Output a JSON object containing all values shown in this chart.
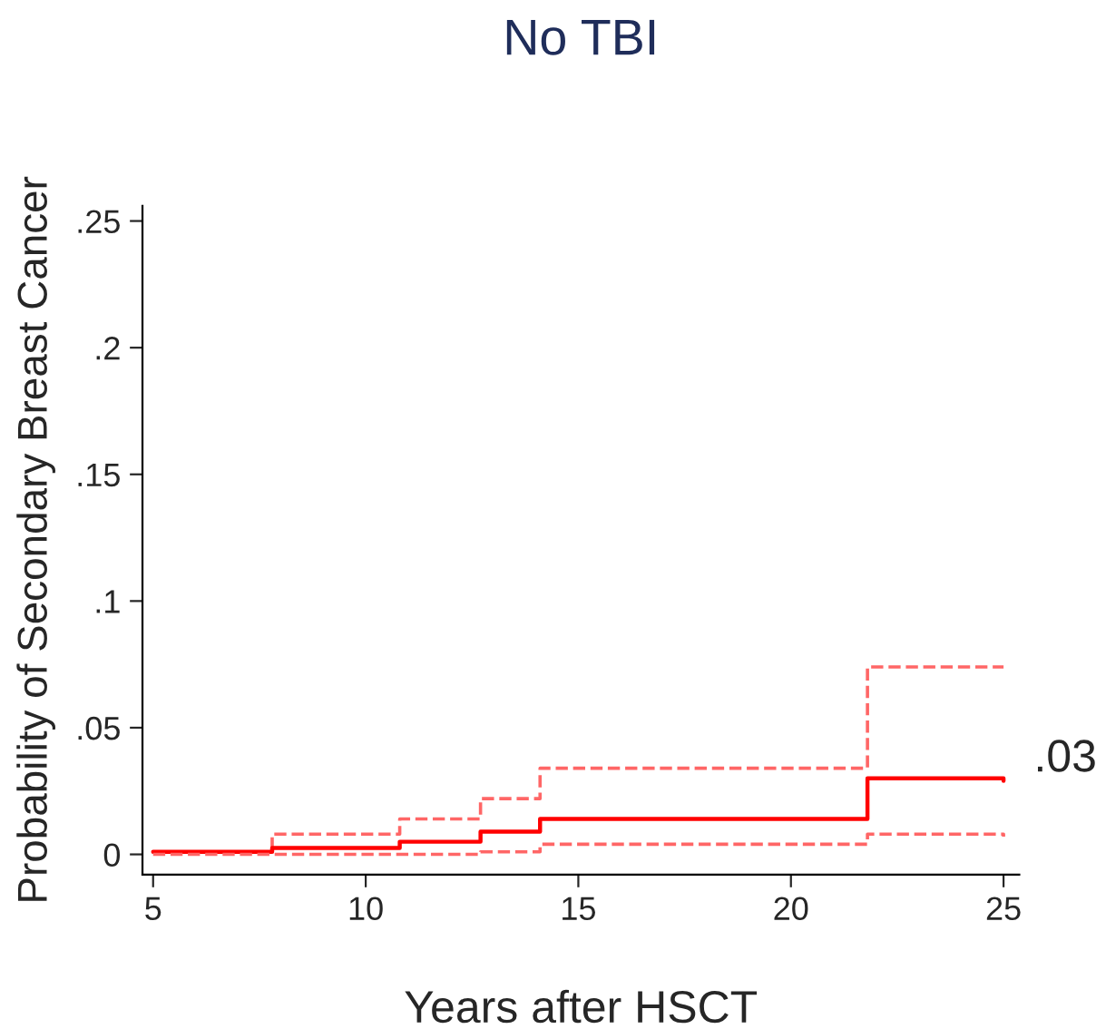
{
  "chart_data": {
    "type": "step",
    "title": "No TBI",
    "xlabel": "Years after HSCT",
    "ylabel": "Probability of Secondary Breast Cancer",
    "xlim": [
      4.75,
      25.37
    ],
    "xticks": [
      5,
      10,
      15,
      20,
      25
    ],
    "ylim": [
      -0.008,
      0.256
    ],
    "yticks": [
      {
        "value": 0,
        "label": "0"
      },
      {
        "value": 0.05,
        "label": ".05"
      },
      {
        "value": 0.1,
        "label": ".1"
      },
      {
        "value": 0.15,
        "label": ".15"
      },
      {
        "value": 0.2,
        "label": ".2"
      },
      {
        "value": 0.25,
        "label": ".25"
      }
    ],
    "grid": false,
    "legend": false,
    "series": [
      {
        "color": "#ff6666",
        "line_style": "dashed",
        "x": [
          5,
          7.8,
          10.8,
          12.7,
          14.1,
          21.8,
          25
        ],
        "values": [
          0.001,
          0.008,
          0.014,
          0.022,
          0.034,
          0.074,
          0.074
        ]
      },
      {
        "color": "#ff0000",
        "line_style": "solid",
        "x": [
          5,
          7.8,
          10.8,
          12.7,
          14.1,
          21.8,
          25
        ],
        "values": [
          0.001,
          0.0025,
          0.005,
          0.009,
          0.014,
          0.03,
          0.029
        ]
      },
      {
        "color": "#ff6666",
        "line_style": "dashed",
        "x": [
          5,
          7.8,
          10.8,
          12.7,
          14.1,
          21.8,
          25
        ],
        "values": [
          0,
          0,
          0,
          0.001,
          0.004,
          0.008,
          0.007
        ]
      }
    ],
    "annotations": [
      {
        "text": ".03",
        "x": 25,
        "y": 0.029
      }
    ]
  }
}
